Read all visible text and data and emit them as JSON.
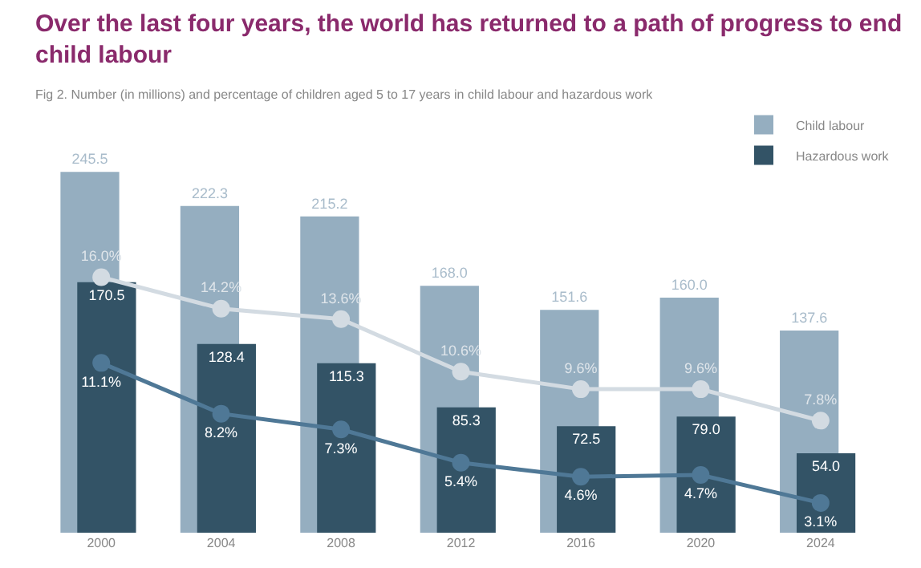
{
  "chart_data": {
    "type": "bar",
    "title": "Over the last four years, the world has returned to a path of progress to end child labour",
    "subtitle": "Fig 2. Number (in millions) and percentage of children aged 5 to 17 years in child labour and hazardous work",
    "categories": [
      "2000",
      "2004",
      "2008",
      "2012",
      "2016",
      "2020",
      "2024"
    ],
    "series": [
      {
        "name": "Child labour",
        "color": "#95aec0",
        "values": [
          245.5,
          222.3,
          215.2,
          168.0,
          151.6,
          160.0,
          137.6
        ],
        "value_labels": [
          "245.5",
          "222.3",
          "215.2",
          "168.0",
          "151.6",
          "160.0",
          "137.6"
        ]
      },
      {
        "name": "Hazardous work",
        "color": "#335366",
        "values": [
          170.5,
          128.4,
          115.3,
          85.3,
          72.5,
          79.0,
          54.0
        ],
        "value_labels": [
          "170.5",
          "128.4",
          "115.3",
          "85.3",
          "72.5",
          "79.0",
          "54.0"
        ]
      },
      {
        "type": "line",
        "axis": "y2",
        "color": "#d3dbe2",
        "values": [
          16.0,
          14.2,
          13.6,
          10.6,
          9.6,
          9.6,
          7.8
        ],
        "value_labels": [
          "16.0%",
          "14.2%",
          "13.6%",
          "10.6%",
          "9.6%",
          "9.6%",
          "7.8%"
        ]
      },
      {
        "type": "line",
        "axis": "y2",
        "color": "#4f7896",
        "values": [
          11.1,
          8.2,
          7.3,
          5.4,
          4.6,
          4.7,
          3.1
        ],
        "value_labels": [
          "11.1%",
          "8.2%",
          "7.3%",
          "5.4%",
          "4.6%",
          "4.7%",
          "3.1%"
        ]
      }
    ],
    "ylim": [
      0,
      262
    ],
    "y2lim": [
      1.4,
      23.4
    ],
    "tick_labels": "x",
    "legend": "top right",
    "marker": "circle"
  }
}
